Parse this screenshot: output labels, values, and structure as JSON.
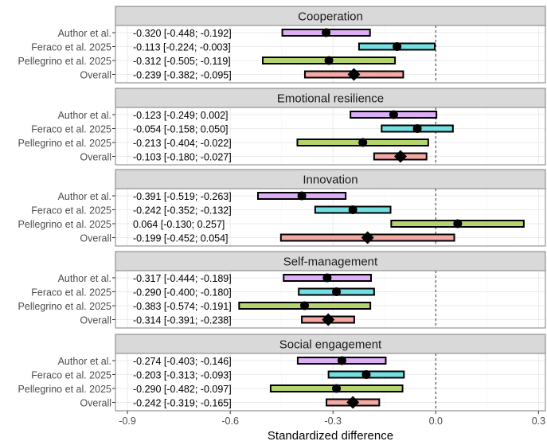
{
  "chart_data": {
    "type": "forest",
    "xlabel": "Standardized difference",
    "xlim": [
      -0.935,
      0.32
    ],
    "xticks": [
      -0.9,
      -0.6,
      -0.3,
      0.0,
      0.3
    ],
    "xtick_labels": [
      "-0.9",
      "-0.6",
      "-0.3",
      "0.0",
      "0.3"
    ],
    "reference_line": 0,
    "grid": true,
    "study_colors": {
      "Author et al.": "#dcaef5",
      "Feraco et al. 2025": "#72e0e3",
      "Pellegrino et al. 2025": "#b6d46d",
      "Overall": "#f5a8a4"
    },
    "panels": [
      {
        "title": "Cooperation",
        "rows": [
          {
            "study": "Author et al.",
            "est": -0.32,
            "lo": -0.448,
            "hi": -0.192,
            "label": "-0.320 [-0.448; -0.192]"
          },
          {
            "study": "Feraco et al. 2025",
            "est": -0.113,
            "lo": -0.224,
            "hi": -0.003,
            "label": "-0.113 [-0.224; -0.003]"
          },
          {
            "study": "Pellegrino et al. 2025",
            "est": -0.312,
            "lo": -0.505,
            "hi": -0.119,
            "label": "-0.312 [-0.505; -0.119]"
          },
          {
            "study": "Overall",
            "est": -0.239,
            "lo": -0.382,
            "hi": -0.095,
            "label": "-0.239 [-0.382; -0.095]"
          }
        ]
      },
      {
        "title": "Emotional resilience",
        "rows": [
          {
            "study": "Author et al.",
            "est": -0.123,
            "lo": -0.249,
            "hi": 0.002,
            "label": "-0.123 [-0.249; 0.002]"
          },
          {
            "study": "Feraco et al. 2025",
            "est": -0.054,
            "lo": -0.158,
            "hi": 0.05,
            "label": "-0.054 [-0.158; 0.050]"
          },
          {
            "study": "Pellegrino et al. 2025",
            "est": -0.213,
            "lo": -0.404,
            "hi": -0.022,
            "label": "-0.213 [-0.404; -0.022]"
          },
          {
            "study": "Overall",
            "est": -0.103,
            "lo": -0.18,
            "hi": -0.027,
            "label": "-0.103 [-0.180; -0.027]"
          }
        ]
      },
      {
        "title": "Innovation",
        "rows": [
          {
            "study": "Author et al.",
            "est": -0.391,
            "lo": -0.519,
            "hi": -0.263,
            "label": "-0.391 [-0.519; -0.263]"
          },
          {
            "study": "Feraco et al. 2025",
            "est": -0.242,
            "lo": -0.352,
            "hi": -0.132,
            "label": "-0.242 [-0.352; -0.132]"
          },
          {
            "study": "Pellegrino et al. 2025",
            "est": 0.064,
            "lo": -0.13,
            "hi": 0.257,
            "label": "0.064 [-0.130; 0.257]"
          },
          {
            "study": "Overall",
            "est": -0.199,
            "lo": -0.452,
            "hi": 0.054,
            "label": "-0.199 [-0.452; 0.054]"
          }
        ]
      },
      {
        "title": "Self-management",
        "rows": [
          {
            "study": "Author et al.",
            "est": -0.317,
            "lo": -0.444,
            "hi": -0.189,
            "label": "-0.317 [-0.444; -0.189]"
          },
          {
            "study": "Feraco et al. 2025",
            "est": -0.29,
            "lo": -0.4,
            "hi": -0.18,
            "label": "-0.290 [-0.400; -0.180]"
          },
          {
            "study": "Pellegrino et al. 2025",
            "est": -0.383,
            "lo": -0.574,
            "hi": -0.191,
            "label": "-0.383 [-0.574; -0.191]"
          },
          {
            "study": "Overall",
            "est": -0.314,
            "lo": -0.391,
            "hi": -0.238,
            "label": "-0.314 [-0.391; -0.238]"
          }
        ]
      },
      {
        "title": "Social engagement",
        "rows": [
          {
            "study": "Author et al.",
            "est": -0.274,
            "lo": -0.403,
            "hi": -0.146,
            "label": "-0.274 [-0.403; -0.146]"
          },
          {
            "study": "Feraco et al. 2025",
            "est": -0.203,
            "lo": -0.313,
            "hi": -0.093,
            "label": "-0.203 [-0.313; -0.093]"
          },
          {
            "study": "Pellegrino et al. 2025",
            "est": -0.29,
            "lo": -0.482,
            "hi": -0.097,
            "label": "-0.290 [-0.482; -0.097]"
          },
          {
            "study": "Overall",
            "est": -0.242,
            "lo": -0.319,
            "hi": -0.165,
            "label": "-0.242 [-0.319; -0.165]"
          }
        ]
      }
    ]
  }
}
